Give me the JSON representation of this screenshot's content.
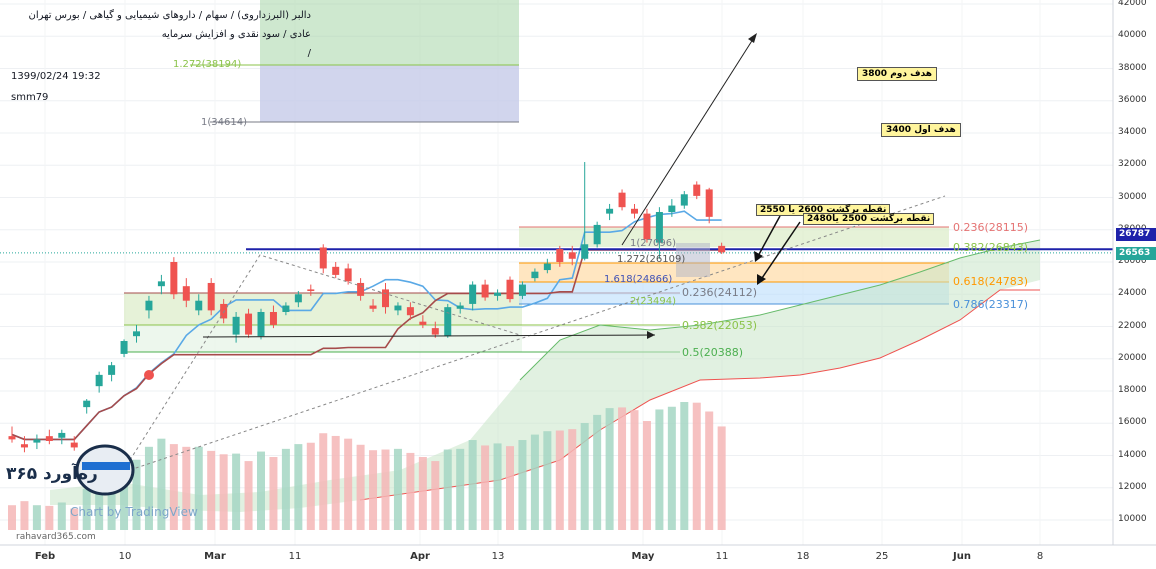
{
  "header": {
    "title_line1": "دالبر (البرزداروی) / سهام / داروهای شیمیایی و گیاهی / بورس تهران",
    "title_line2": "عادی / سود نقدی و افزایش سرمایه",
    "title_line3": "/",
    "datetime": "1399/02/24 19:32",
    "author": "smm79"
  },
  "annotations": {
    "target1": "هدف اول 3400",
    "target2": "هدف دوم 3800",
    "pullback1": "نقطه برگشت 2600 یا 2550",
    "pullback2": "نقطه برگشت 2500 یا2480"
  },
  "fib_upper": [
    {
      "label": "1.272(38194)",
      "color": "#8bc34a"
    },
    {
      "label": "1(34614)",
      "color": "#787b86"
    }
  ],
  "fib_mid": [
    {
      "label": "1(27096)",
      "color": "#787b86"
    },
    {
      "label": "1.272(26109)",
      "color": "#555"
    },
    {
      "label": "1.618(24866)",
      "color": "#3f51b5"
    },
    {
      "label": "2(23494)",
      "color": "#8bc34a"
    }
  ],
  "fib_right": [
    {
      "label": "0.236(28115)",
      "color": "#e57373"
    },
    {
      "label": "0.382(26843)",
      "color": "#8bc34a"
    },
    {
      "label": "0.236(24112)",
      "color": "#787b86"
    },
    {
      "label": "0.618(24783)",
      "color": "#ff9800"
    },
    {
      "label": "0.786(23317)",
      "color": "#4a90d9"
    },
    {
      "label": "0.382(22053)",
      "color": "#8bc34a"
    },
    {
      "label": "0.5(20388)",
      "color": "#4caf50"
    }
  ],
  "logo": {
    "brand": "ره‌آورد ۳۶۵",
    "url": "rahavard365.com",
    "watermark": "Chart by TradingView"
  },
  "price_tags": [
    {
      "value": "26787",
      "color": "#1e22aa"
    },
    {
      "value": "26563",
      "color": "#26a69a"
    }
  ],
  "colors": {
    "up": "#26a69a",
    "down": "#ef5350",
    "support": "#1e22aa",
    "tenkan": "#5aa9e6",
    "kijun": "#a64b4b"
  },
  "chart_data": {
    "type": "candlestick",
    "y_axis": {
      "min": 9000,
      "max": 42000,
      "ticks": [
        10000,
        12000,
        14000,
        16000,
        18000,
        20000,
        22000,
        24000,
        26000,
        28000,
        30000,
        32000,
        34000,
        36000,
        38000,
        40000,
        42000
      ]
    },
    "x_axis_labels": [
      "Feb",
      "10",
      "Mar",
      "11",
      "Apr",
      "13",
      "May",
      "11",
      "18",
      "25",
      "Jun",
      "8"
    ],
    "support_line": 26787,
    "last_price": 26563,
    "candles": [
      {
        "o": 15200,
        "h": 15800,
        "l": 14800,
        "c": 15000
      },
      {
        "o": 14700,
        "h": 15200,
        "l": 14200,
        "c": 14500
      },
      {
        "o": 14800,
        "h": 15300,
        "l": 14400,
        "c": 15000
      },
      {
        "o": 15200,
        "h": 15600,
        "l": 14700,
        "c": 14900
      },
      {
        "o": 15100,
        "h": 15600,
        "l": 14700,
        "c": 15400
      },
      {
        "o": 14800,
        "h": 15200,
        "l": 14300,
        "c": 14500
      },
      {
        "o": 17000,
        "h": 17500,
        "l": 16600,
        "c": 17400
      },
      {
        "o": 18300,
        "h": 19200,
        "l": 17900,
        "c": 19000
      },
      {
        "o": 19000,
        "h": 19800,
        "l": 18600,
        "c": 19600
      },
      {
        "o": 20300,
        "h": 21200,
        "l": 20100,
        "c": 21100
      },
      {
        "o": 21400,
        "h": 22100,
        "l": 21000,
        "c": 21700
      },
      {
        "o": 23000,
        "h": 23900,
        "l": 22500,
        "c": 23600
      },
      {
        "o": 24500,
        "h": 25200,
        "l": 24000,
        "c": 24800
      },
      {
        "o": 26000,
        "h": 26300,
        "l": 23700,
        "c": 24000
      },
      {
        "o": 24500,
        "h": 25000,
        "l": 23200,
        "c": 23600
      },
      {
        "o": 23000,
        "h": 24000,
        "l": 22700,
        "c": 23600
      },
      {
        "o": 24700,
        "h": 25000,
        "l": 22700,
        "c": 23000
      },
      {
        "o": 23400,
        "h": 23700,
        "l": 22200,
        "c": 22500
      },
      {
        "o": 21500,
        "h": 22900,
        "l": 21000,
        "c": 22600
      },
      {
        "o": 22800,
        "h": 23100,
        "l": 21300,
        "c": 21500
      },
      {
        "o": 21400,
        "h": 23100,
        "l": 21200,
        "c": 22900
      },
      {
        "o": 22900,
        "h": 23300,
        "l": 21900,
        "c": 22100
      },
      {
        "o": 22900,
        "h": 23500,
        "l": 22700,
        "c": 23300
      },
      {
        "o": 23500,
        "h": 24200,
        "l": 23200,
        "c": 24000
      },
      {
        "o": 24300,
        "h": 24600,
        "l": 23900,
        "c": 24200
      },
      {
        "o": 26900,
        "h": 27100,
        "l": 25300,
        "c": 25600
      },
      {
        "o": 25700,
        "h": 26000,
        "l": 25000,
        "c": 25200
      },
      {
        "o": 25600,
        "h": 25900,
        "l": 24600,
        "c": 24800
      },
      {
        "o": 24700,
        "h": 25000,
        "l": 23600,
        "c": 23900
      },
      {
        "o": 23300,
        "h": 23700,
        "l": 22900,
        "c": 23100
      },
      {
        "o": 24300,
        "h": 24700,
        "l": 22800,
        "c": 23200
      },
      {
        "o": 23000,
        "h": 23500,
        "l": 22700,
        "c": 23300
      },
      {
        "o": 23200,
        "h": 23500,
        "l": 22400,
        "c": 22700
      },
      {
        "o": 22300,
        "h": 22700,
        "l": 21900,
        "c": 22100
      },
      {
        "o": 21900,
        "h": 22300,
        "l": 21300,
        "c": 21500
      },
      {
        "o": 21400,
        "h": 23400,
        "l": 21300,
        "c": 23200
      },
      {
        "o": 23100,
        "h": 23500,
        "l": 22800,
        "c": 23300
      },
      {
        "o": 23400,
        "h": 24800,
        "l": 23000,
        "c": 24600
      },
      {
        "o": 24600,
        "h": 24900,
        "l": 23600,
        "c": 23800
      },
      {
        "o": 23900,
        "h": 24300,
        "l": 23600,
        "c": 24100
      },
      {
        "o": 24900,
        "h": 25100,
        "l": 23500,
        "c": 23700
      },
      {
        "o": 23900,
        "h": 24800,
        "l": 23700,
        "c": 24600
      },
      {
        "o": 25000,
        "h": 25600,
        "l": 24800,
        "c": 25400
      },
      {
        "o": 25500,
        "h": 26200,
        "l": 25300,
        "c": 25900
      },
      {
        "o": 26800,
        "h": 27000,
        "l": 25700,
        "c": 26000
      },
      {
        "o": 26600,
        "h": 27000,
        "l": 25800,
        "c": 26200
      },
      {
        "o": 26200,
        "h": 32200,
        "l": 26100,
        "c": 27100
      },
      {
        "o": 27100,
        "h": 28500,
        "l": 26900,
        "c": 28300
      },
      {
        "o": 29000,
        "h": 29600,
        "l": 28600,
        "c": 29300
      },
      {
        "o": 30300,
        "h": 30500,
        "l": 29200,
        "c": 29400
      },
      {
        "o": 29300,
        "h": 29600,
        "l": 28700,
        "c": 29000
      },
      {
        "o": 29000,
        "h": 29300,
        "l": 27200,
        "c": 27400
      },
      {
        "o": 27200,
        "h": 29400,
        "l": 26200,
        "c": 29100
      },
      {
        "o": 29100,
        "h": 29900,
        "l": 28800,
        "c": 29500
      },
      {
        "o": 29500,
        "h": 30400,
        "l": 29300,
        "c": 30200
      },
      {
        "o": 30800,
        "h": 31000,
        "l": 29900,
        "c": 30100
      },
      {
        "o": 30500,
        "h": 30600,
        "l": 28400,
        "c": 28800
      },
      {
        "o": 27000,
        "h": 27200,
        "l": 26500,
        "c": 26600
      }
    ],
    "volume": [
      15000,
      15600,
      15000,
      14900,
      15400,
      14500,
      17400,
      19000,
      19600,
      21100,
      21700,
      23600,
      24800,
      24000,
      23600,
      23600,
      23000,
      22500,
      22600,
      21500,
      22900,
      22100,
      23300,
      24000,
      24200,
      25600,
      25200,
      24800,
      23900,
      23100,
      23200,
      23300,
      22700,
      22100,
      21500,
      23200,
      23300,
      24600,
      23800,
      24100,
      23700,
      24600,
      25400,
      25900,
      26000,
      26200,
      27100,
      28300,
      29300,
      29400,
      29000,
      27400,
      29100,
      29500,
      30200,
      30100,
      28800,
      26600
    ]
  }
}
